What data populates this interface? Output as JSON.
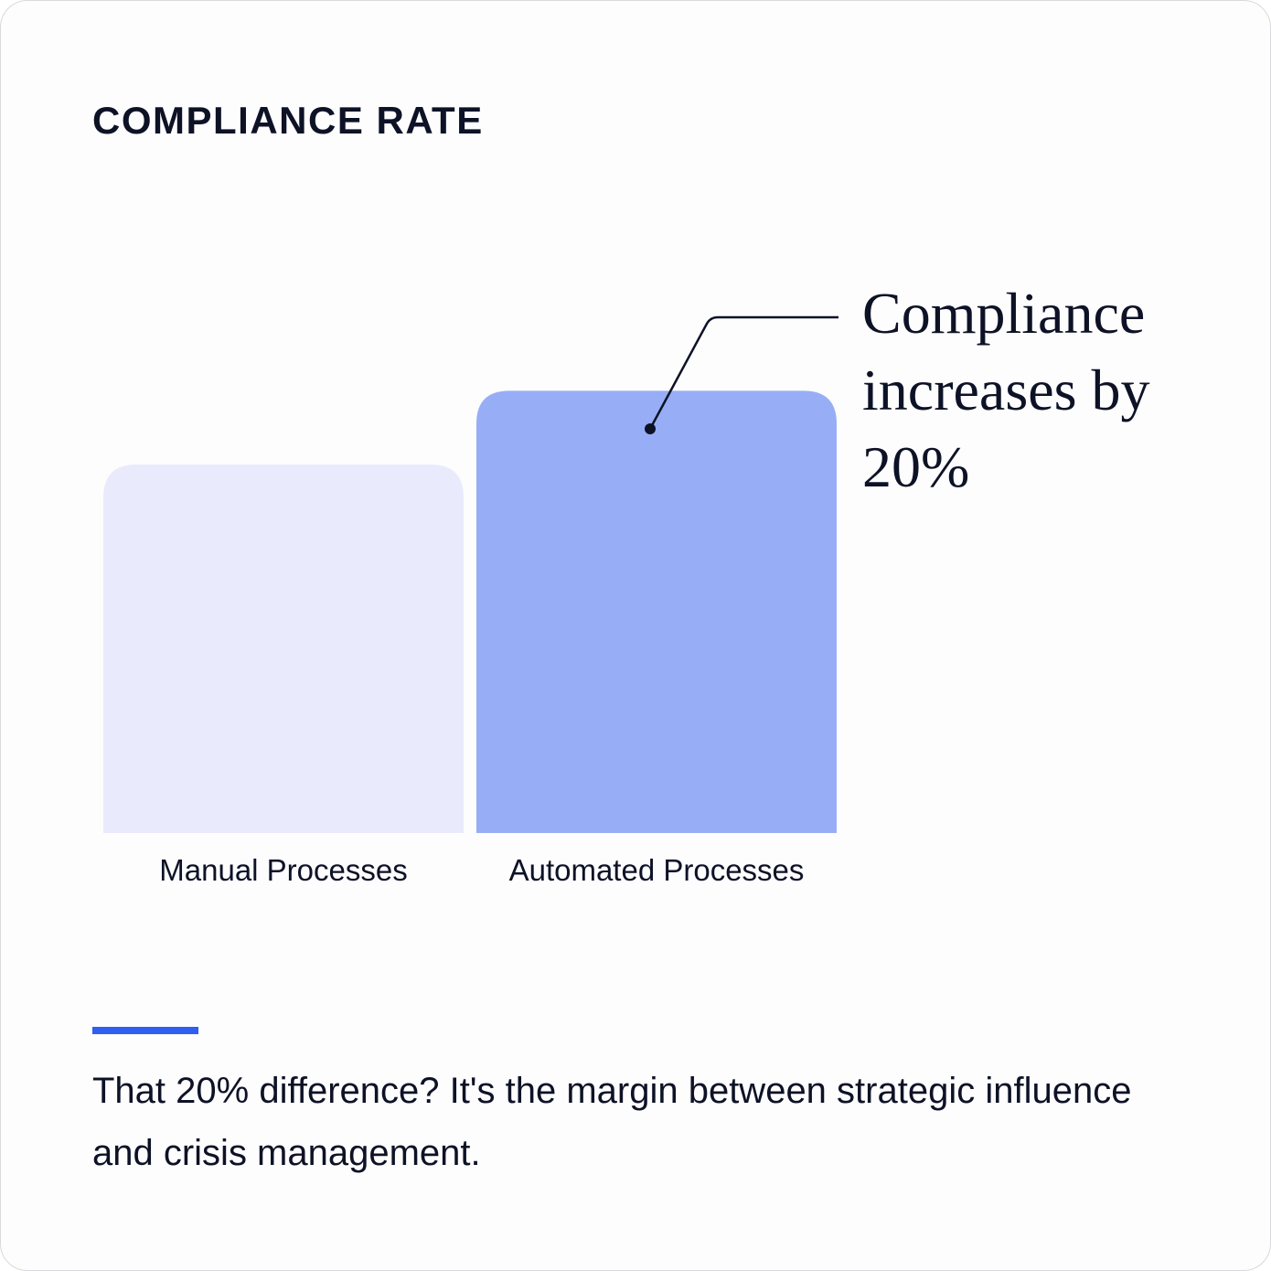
{
  "title": "COMPLIANCE RATE",
  "annotation": {
    "text": "Compliance increases by 20%"
  },
  "caption": "That 20% difference? It's the margin between strategic influence and crisis management.",
  "colors": {
    "manual_bar": "#e9ebfd",
    "automated_bar": "#97aef6",
    "accent": "#2f5ef0",
    "text": "#0d1226"
  },
  "chart_data": {
    "type": "bar",
    "categories": [
      "Manual Processes",
      "Automated Processes"
    ],
    "values": [
      100,
      120
    ],
    "ylim": [
      0,
      130
    ],
    "grid": false,
    "legend": "none",
    "annotations": [
      {
        "category": "Automated Processes",
        "text": "Compliance increases by 20%"
      }
    ]
  }
}
